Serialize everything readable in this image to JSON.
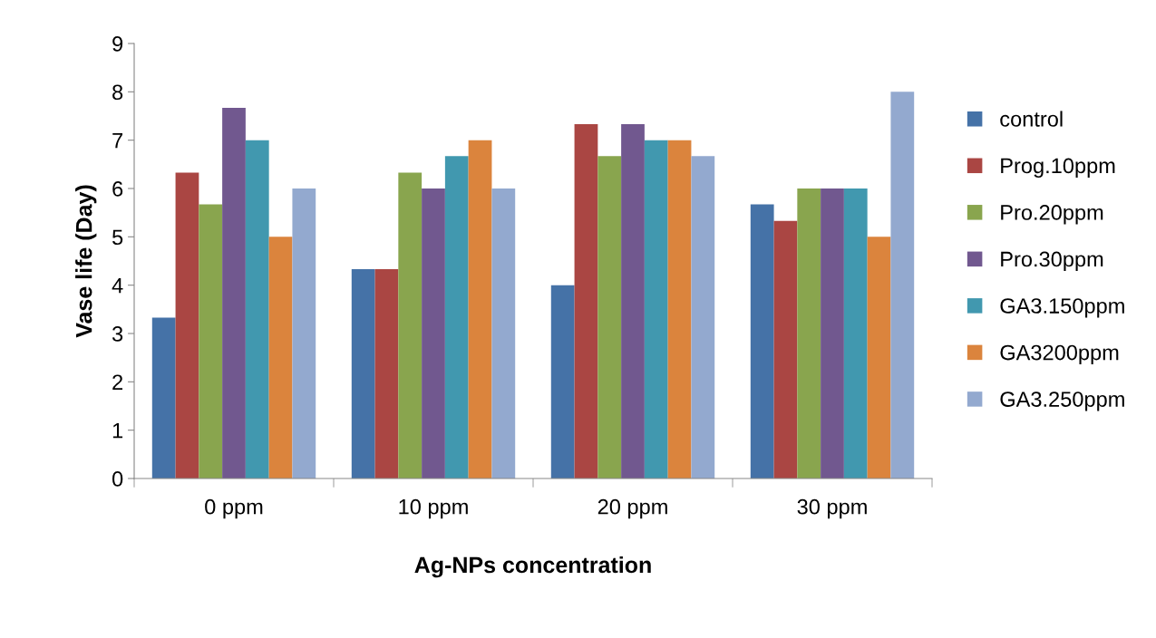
{
  "chart_data": {
    "type": "bar",
    "xlabel": "Ag-NPs concentration",
    "ylabel": "Vase life (Day)",
    "categories": [
      "0 ppm",
      "10 ppm",
      "20 ppm",
      "30 ppm"
    ],
    "series": [
      {
        "name": "control",
        "color": "#4572a7",
        "values": [
          3.33,
          4.33,
          4.0,
          5.67
        ]
      },
      {
        "name": "Prog.10ppm",
        "color": "#aa4643",
        "values": [
          6.33,
          4.33,
          7.33,
          5.33
        ]
      },
      {
        "name": "Pro.20ppm",
        "color": "#89a54e",
        "values": [
          5.67,
          6.33,
          6.67,
          6.0
        ]
      },
      {
        "name": "Pro.30ppm",
        "color": "#71588f",
        "values": [
          7.67,
          6.0,
          7.33,
          6.0
        ]
      },
      {
        "name": "GA3.150ppm",
        "color": "#4198af",
        "values": [
          7.0,
          6.67,
          7.0,
          6.0
        ]
      },
      {
        "name": "GA3200ppm",
        "color": "#db843d",
        "values": [
          5.0,
          7.0,
          7.0,
          5.0
        ]
      },
      {
        "name": "GA3.250ppm",
        "color": "#93a9cf",
        "values": [
          6.0,
          6.0,
          6.67,
          8.0
        ]
      }
    ],
    "ylim": [
      0,
      9
    ],
    "yticks": [
      0,
      1,
      2,
      3,
      4,
      5,
      6,
      7,
      8,
      9
    ],
    "grid": false,
    "legend": "right"
  }
}
